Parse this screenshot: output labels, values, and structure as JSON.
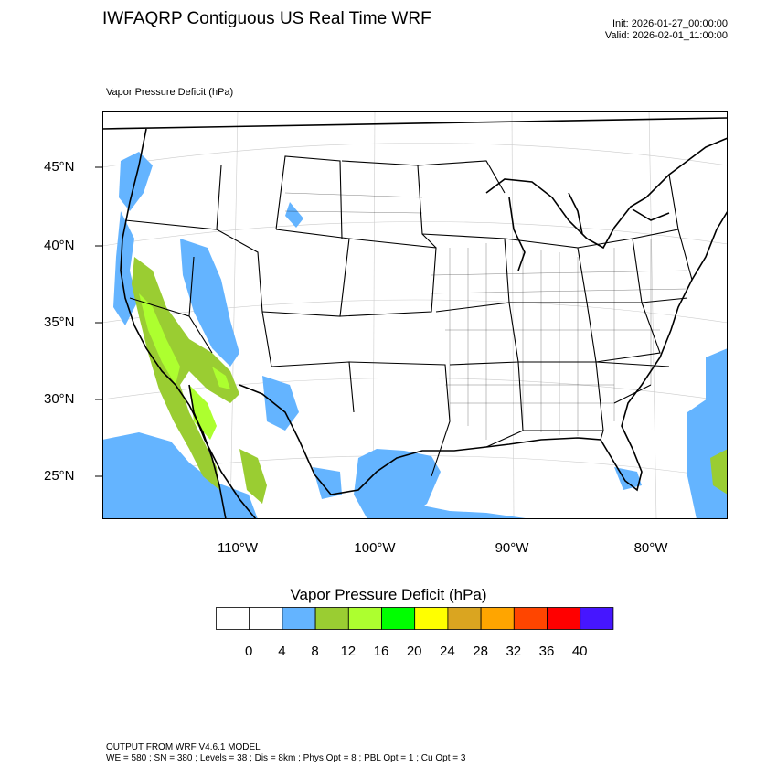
{
  "header": {
    "title": "IWFAQRP Contiguous US Real Time WRF",
    "init": "Init: 2026-01-27_00:00:00",
    "valid": "Valid: 2026-02-01_11:00:00"
  },
  "field_label": "Vapor Pressure Deficit   (hPa)",
  "map": {
    "projection": "lambert-conformal",
    "region": "Contiguous US",
    "lon_labels": [
      "110°W",
      "100°W",
      "90°W",
      "80°W"
    ],
    "lat_labels": [
      "45°N",
      "40°N",
      "35°N",
      "30°N",
      "25°N"
    ],
    "background": "#ffffff",
    "features": [
      "state-boundaries",
      "county-boundaries",
      "coastlines",
      "graticule"
    ]
  },
  "colorbar": {
    "title": "Vapor Pressure Deficit  (hPa)",
    "colors": [
      "#ffffff",
      "#ffffff",
      "#64b4ff",
      "#9acd32",
      "#adff2f",
      "#00ff00",
      "#ffff00",
      "#daa520",
      "#ffa500",
      "#ff4500",
      "#ff0000",
      "#4616ff"
    ],
    "labels": [
      "0",
      "4",
      "8",
      "12",
      "16",
      "20",
      "24",
      "28",
      "32",
      "36",
      "40"
    ]
  },
  "footer": {
    "line1": "OUTPUT FROM WRF V4.6.1 MODEL",
    "line2": "WE = 580 ; SN = 380 ; Levels = 38 ; Dis = 8km ; Phys Opt = 8 ; PBL Opt = 1 ; Cu Opt = 3"
  }
}
